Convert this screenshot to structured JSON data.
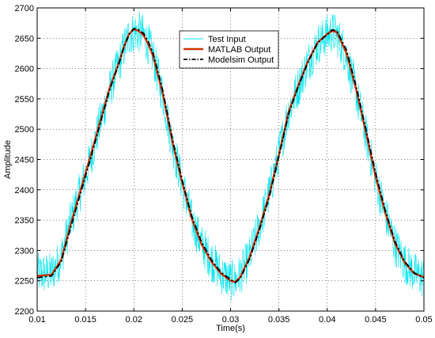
{
  "chart_data": {
    "type": "line",
    "title": "",
    "xlabel": "Time(s)",
    "ylabel": "Amplitude",
    "xlim": [
      0.01,
      0.05
    ],
    "ylim": [
      2200,
      2700
    ],
    "grid": true,
    "legend_position": "top-center",
    "x_ticks": [
      "0.01",
      "0.015",
      "0.02",
      "0.025",
      "0.03",
      "0.035",
      "0.04",
      "0.045",
      "0.05"
    ],
    "y_ticks": [
      "2200",
      "2250",
      "2300",
      "2350",
      "2400",
      "2450",
      "2500",
      "2550",
      "2600",
      "2650",
      "2700"
    ],
    "x": [
      0.01,
      0.0115,
      0.0125,
      0.0135,
      0.0145,
      0.0155,
      0.0165,
      0.0175,
      0.0185,
      0.019,
      0.0195,
      0.02,
      0.0205,
      0.021,
      0.0215,
      0.022,
      0.023,
      0.024,
      0.025,
      0.026,
      0.027,
      0.028,
      0.029,
      0.03,
      0.0305,
      0.031,
      0.032,
      0.033,
      0.034,
      0.035,
      0.036,
      0.037,
      0.038,
      0.039,
      0.04,
      0.0405,
      0.041,
      0.042,
      0.043,
      0.044,
      0.045,
      0.046,
      0.047,
      0.048,
      0.049,
      0.05
    ],
    "series": [
      {
        "name": "Test Input",
        "color": "#00e5ee",
        "style": "noisy",
        "values": [
          2262,
          2262,
          2290,
          2350,
          2400,
          2450,
          2510,
          2565,
          2610,
          2635,
          2655,
          2660,
          2660,
          2655,
          2640,
          2620,
          2555,
          2475,
          2410,
          2350,
          2310,
          2285,
          2262,
          2250,
          2250,
          2260,
          2290,
          2340,
          2395,
          2460,
          2530,
          2570,
          2610,
          2640,
          2655,
          2660,
          2655,
          2620,
          2560,
          2490,
          2420,
          2360,
          2310,
          2280,
          2262,
          2255
        ]
      },
      {
        "name": "MATLAB Output",
        "color": "#cc3300",
        "style": "solid",
        "values": [
          2258,
          2260,
          2285,
          2345,
          2400,
          2455,
          2512,
          2568,
          2612,
          2637,
          2657,
          2665,
          2662,
          2655,
          2640,
          2620,
          2558,
          2478,
          2412,
          2352,
          2310,
          2282,
          2262,
          2250,
          2248,
          2256,
          2290,
          2338,
          2392,
          2458,
          2528,
          2572,
          2612,
          2643,
          2657,
          2662,
          2660,
          2625,
          2565,
          2495,
          2422,
          2362,
          2312,
          2280,
          2262,
          2256
        ]
      },
      {
        "name": "Modelsim Output",
        "color": "#000000",
        "style": "dash-dot",
        "values": [
          2255,
          2258,
          2282,
          2340,
          2395,
          2450,
          2508,
          2565,
          2610,
          2636,
          2656,
          2666,
          2664,
          2658,
          2644,
          2625,
          2563,
          2483,
          2416,
          2356,
          2314,
          2285,
          2264,
          2252,
          2247,
          2254,
          2287,
          2335,
          2388,
          2455,
          2525,
          2570,
          2610,
          2642,
          2656,
          2664,
          2662,
          2630,
          2570,
          2500,
          2428,
          2366,
          2315,
          2282,
          2263,
          2255
        ]
      }
    ]
  }
}
